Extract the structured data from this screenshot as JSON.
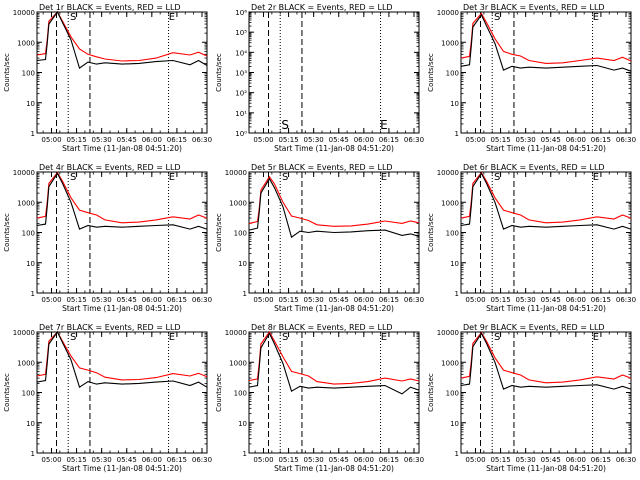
{
  "ylabel": "Counts/sec",
  "xlabel": "Start Time (11-Jan-08 04:51:20)",
  "x_tick_labels": [
    "05:00",
    "05:15",
    "05:30",
    "05:45",
    "06:00",
    "06:15",
    "06:30"
  ],
  "y_tick_labels_log": [
    "1",
    "10",
    "100",
    "1000",
    "10000"
  ],
  "y_tick_labels_det2": [
    "10⁰",
    "10¹",
    "10²",
    "10³",
    "10⁴",
    "10⁵",
    "10⁶"
  ],
  "colors": {
    "events": "#000000",
    "lld": "#ff0000"
  },
  "chart_data": [
    {
      "type": "line",
      "title": "Det 1r BLACK = Events, RED = LLD",
      "ylog": true,
      "ylim": [
        1,
        10000
      ],
      "xlim": [
        "04:51:20",
        "06:33:00"
      ],
      "markers_dashed": [
        "05:03",
        "05:23"
      ],
      "markers_dotted": [
        "05:10",
        "06:10"
      ],
      "mark_labels": [
        {
          "text": "S",
          "x": "05:13"
        },
        {
          "text": "E",
          "x": "06:12"
        }
      ],
      "series": [
        {
          "name": "LLD",
          "color": "#ff0000",
          "x": [
            0,
            5,
            6,
            7,
            12,
            15,
            20,
            25,
            30,
            35,
            40,
            50,
            60,
            70,
            80,
            90,
            95,
            100
          ],
          "y": [
            380,
            420,
            1200,
            5000,
            10000,
            5000,
            1500,
            600,
            400,
            330,
            280,
            240,
            250,
            300,
            450,
            380,
            470,
            350
          ]
        },
        {
          "name": "Events",
          "color": "#000000",
          "x": [
            0,
            5,
            6,
            7,
            12,
            15,
            20,
            25,
            30,
            35,
            40,
            50,
            60,
            70,
            80,
            90,
            95,
            100
          ],
          "y": [
            250,
            270,
            900,
            4000,
            10000,
            4500,
            1200,
            140,
            220,
            190,
            210,
            190,
            200,
            230,
            250,
            180,
            250,
            170
          ]
        }
      ]
    },
    {
      "type": "line",
      "title": "Det 2r BLACK = Events, RED = LLD",
      "ylog": true,
      "ylim": [
        1,
        1000000
      ],
      "xlim": [
        "04:51:20",
        "06:33:00"
      ],
      "markers_dashed": [
        "05:03",
        "05:23"
      ],
      "markers_dotted": [
        "05:10",
        "06:10"
      ],
      "mark_labels": [
        {
          "text": "S",
          "x": "05:13"
        },
        {
          "text": "E",
          "x": "06:12"
        }
      ],
      "series": []
    },
    {
      "type": "line",
      "title": "Det 3r BLACK = Events, RED = LLD",
      "ylog": true,
      "ylim": [
        1,
        10000
      ],
      "xlim": [
        "04:51:20",
        "06:33:00"
      ],
      "markers_dashed": [
        "05:03",
        "05:23"
      ],
      "markers_dotted": [
        "05:10",
        "06:10"
      ],
      "mark_labels": [
        {
          "text": "S",
          "x": "05:13"
        },
        {
          "text": "E",
          "x": "06:12"
        }
      ],
      "series": [
        {
          "name": "LLD",
          "color": "#ff0000",
          "x": [
            0,
            5,
            6,
            7,
            12,
            15,
            20,
            25,
            30,
            35,
            40,
            50,
            60,
            70,
            80,
            90,
            95,
            100
          ],
          "y": [
            300,
            340,
            1000,
            4200,
            9000,
            4500,
            1300,
            500,
            400,
            350,
            250,
            200,
            210,
            250,
            300,
            250,
            320,
            240
          ]
        },
        {
          "name": "Events",
          "color": "#000000",
          "x": [
            0,
            5,
            6,
            7,
            12,
            15,
            20,
            25,
            30,
            35,
            40,
            50,
            60,
            70,
            80,
            90,
            95,
            100
          ],
          "y": [
            160,
            180,
            700,
            3200,
            8000,
            3500,
            900,
            120,
            160,
            140,
            150,
            140,
            150,
            160,
            170,
            120,
            140,
            110
          ]
        }
      ]
    },
    {
      "type": "line",
      "title": "Det 4r BLACK = Events, RED = LLD",
      "ylog": true,
      "ylim": [
        1,
        10000
      ],
      "xlim": [
        "04:51:20",
        "06:33:00"
      ],
      "markers_dashed": [
        "05:03",
        "05:23"
      ],
      "markers_dotted": [
        "05:10",
        "06:10"
      ],
      "mark_labels": [
        {
          "text": "S",
          "x": "05:13"
        },
        {
          "text": "E",
          "x": "06:12"
        }
      ],
      "series": [
        {
          "name": "LLD",
          "color": "#ff0000",
          "x": [
            0,
            5,
            6,
            7,
            12,
            15,
            20,
            25,
            30,
            35,
            40,
            50,
            60,
            70,
            80,
            90,
            95,
            100
          ],
          "y": [
            300,
            340,
            1000,
            4200,
            9500,
            5000,
            1400,
            550,
            450,
            380,
            260,
            210,
            220,
            260,
            330,
            280,
            380,
            300
          ]
        },
        {
          "name": "Events",
          "color": "#000000",
          "x": [
            0,
            5,
            6,
            7,
            12,
            15,
            20,
            25,
            30,
            35,
            40,
            50,
            60,
            70,
            80,
            90,
            95,
            100
          ],
          "y": [
            170,
            190,
            700,
            3300,
            9000,
            4200,
            1000,
            130,
            170,
            150,
            160,
            150,
            160,
            170,
            180,
            130,
            160,
            130
          ]
        }
      ]
    },
    {
      "type": "line",
      "title": "Det 5r BLACK = Events, RED = LLD",
      "ylog": true,
      "ylim": [
        1,
        10000
      ],
      "xlim": [
        "04:51:20",
        "06:33:00"
      ],
      "markers_dashed": [
        "05:03",
        "05:23"
      ],
      "markers_dotted": [
        "05:10",
        "06:10"
      ],
      "mark_labels": [
        {
          "text": "S",
          "x": "05:13"
        },
        {
          "text": "E",
          "x": "06:12"
        }
      ],
      "series": [
        {
          "name": "LLD",
          "color": "#ff0000",
          "x": [
            0,
            5,
            6,
            7,
            12,
            15,
            20,
            25,
            30,
            35,
            40,
            50,
            60,
            70,
            80,
            90,
            95,
            100
          ],
          "y": [
            200,
            230,
            600,
            2500,
            7000,
            4000,
            1000,
            350,
            300,
            250,
            180,
            160,
            165,
            190,
            240,
            200,
            240,
            210
          ]
        },
        {
          "name": "Events",
          "color": "#000000",
          "x": [
            0,
            5,
            6,
            7,
            12,
            15,
            20,
            25,
            30,
            35,
            40,
            50,
            60,
            70,
            80,
            90,
            95,
            100
          ],
          "y": [
            120,
            140,
            450,
            2000,
            6000,
            3000,
            700,
            70,
            110,
            100,
            110,
            100,
            105,
            115,
            120,
            80,
            90,
            75
          ]
        }
      ]
    },
    {
      "type": "line",
      "title": "Det 6r BLACK = Events, RED = LLD",
      "ylog": true,
      "ylim": [
        1,
        10000
      ],
      "xlim": [
        "04:51:20",
        "06:33:00"
      ],
      "markers_dashed": [
        "05:03",
        "05:23"
      ],
      "markers_dotted": [
        "05:10",
        "06:10"
      ],
      "mark_labels": [
        {
          "text": "S",
          "x": "05:13"
        },
        {
          "text": "E",
          "x": "06:12"
        }
      ],
      "series": [
        {
          "name": "LLD",
          "color": "#ff0000",
          "x": [
            0,
            5,
            6,
            7,
            12,
            15,
            20,
            25,
            30,
            35,
            40,
            50,
            60,
            70,
            80,
            90,
            95,
            100
          ],
          "y": [
            300,
            340,
            1000,
            4200,
            9500,
            5000,
            1400,
            550,
            450,
            380,
            260,
            210,
            220,
            260,
            330,
            280,
            380,
            300
          ]
        },
        {
          "name": "Events",
          "color": "#000000",
          "x": [
            0,
            5,
            6,
            7,
            12,
            15,
            20,
            25,
            30,
            35,
            40,
            50,
            60,
            70,
            80,
            90,
            95,
            100
          ],
          "y": [
            170,
            190,
            700,
            3300,
            9000,
            4200,
            1000,
            130,
            170,
            150,
            160,
            150,
            160,
            170,
            180,
            130,
            160,
            130
          ]
        }
      ]
    },
    {
      "type": "line",
      "title": "Det 7r BLACK = Events, RED = LLD",
      "ylog": true,
      "ylim": [
        1,
        10000
      ],
      "xlim": [
        "04:51:20",
        "06:33:00"
      ],
      "markers_dashed": [
        "05:03",
        "05:23"
      ],
      "markers_dotted": [
        "05:10",
        "06:10"
      ],
      "mark_labels": [
        {
          "text": "S",
          "x": "05:13"
        },
        {
          "text": "E",
          "x": "06:12"
        }
      ],
      "series": [
        {
          "name": "LLD",
          "color": "#ff0000",
          "x": [
            0,
            5,
            6,
            7,
            12,
            15,
            20,
            25,
            30,
            35,
            40,
            50,
            60,
            70,
            80,
            90,
            95,
            100
          ],
          "y": [
            350,
            400,
            1300,
            5000,
            10000,
            5000,
            1600,
            650,
            550,
            450,
            320,
            260,
            270,
            310,
            420,
            350,
            430,
            330
          ]
        },
        {
          "name": "Events",
          "color": "#000000",
          "x": [
            0,
            5,
            6,
            7,
            12,
            15,
            20,
            25,
            30,
            35,
            40,
            50,
            60,
            70,
            80,
            90,
            95,
            100
          ],
          "y": [
            220,
            250,
            900,
            4000,
            10000,
            4500,
            1200,
            150,
            230,
            190,
            210,
            190,
            200,
            220,
            240,
            170,
            220,
            150
          ]
        }
      ]
    },
    {
      "type": "line",
      "title": "Det 8r BLACK = Events, RED = LLD",
      "ylog": true,
      "ylim": [
        1,
        10000
      ],
      "xlim": [
        "04:51:20",
        "06:33:00"
      ],
      "markers_dashed": [
        "05:03",
        "05:23"
      ],
      "markers_dotted": [
        "05:10",
        "06:10"
      ],
      "mark_labels": [
        {
          "text": "S",
          "x": "05:13"
        },
        {
          "text": "E",
          "x": "06:12"
        }
      ],
      "series": [
        {
          "name": "LLD",
          "color": "#ff0000",
          "x": [
            0,
            5,
            6,
            7,
            12,
            15,
            20,
            25,
            30,
            35,
            40,
            50,
            60,
            70,
            80,
            90,
            95,
            100
          ],
          "y": [
            250,
            280,
            900,
            4000,
            10000,
            5000,
            1500,
            500,
            420,
            350,
            230,
            190,
            200,
            230,
            300,
            240,
            280,
            240
          ]
        },
        {
          "name": "Events",
          "color": "#000000",
          "x": [
            0,
            5,
            6,
            7,
            12,
            15,
            20,
            25,
            30,
            35,
            40,
            50,
            60,
            70,
            80,
            90,
            95,
            100
          ],
          "y": [
            150,
            170,
            650,
            3000,
            9000,
            4000,
            900,
            110,
            160,
            140,
            150,
            140,
            150,
            160,
            170,
            90,
            150,
            120
          ]
        }
      ]
    },
    {
      "type": "line",
      "title": "Det 9r BLACK = Events, RED = LLD",
      "ylog": true,
      "ylim": [
        1,
        10000
      ],
      "xlim": [
        "04:51:20",
        "06:33:00"
      ],
      "markers_dashed": [
        "05:03",
        "05:23"
      ],
      "markers_dotted": [
        "05:10",
        "06:10"
      ],
      "mark_labels": [
        {
          "text": "S",
          "x": "05:13"
        },
        {
          "text": "E",
          "x": "06:12"
        }
      ],
      "series": [
        {
          "name": "LLD",
          "color": "#ff0000",
          "x": [
            0,
            5,
            6,
            7,
            12,
            15,
            20,
            25,
            30,
            35,
            40,
            50,
            60,
            70,
            80,
            90,
            95,
            100
          ],
          "y": [
            300,
            340,
            1000,
            4200,
            9500,
            5000,
            1400,
            550,
            450,
            380,
            260,
            210,
            220,
            260,
            330,
            280,
            380,
            300
          ]
        },
        {
          "name": "Events",
          "color": "#000000",
          "x": [
            0,
            5,
            6,
            7,
            12,
            15,
            20,
            25,
            30,
            35,
            40,
            50,
            60,
            70,
            80,
            90,
            95,
            100
          ],
          "y": [
            170,
            190,
            700,
            3300,
            9000,
            4200,
            1000,
            130,
            170,
            150,
            160,
            150,
            160,
            170,
            180,
            130,
            160,
            130
          ]
        }
      ]
    }
  ]
}
